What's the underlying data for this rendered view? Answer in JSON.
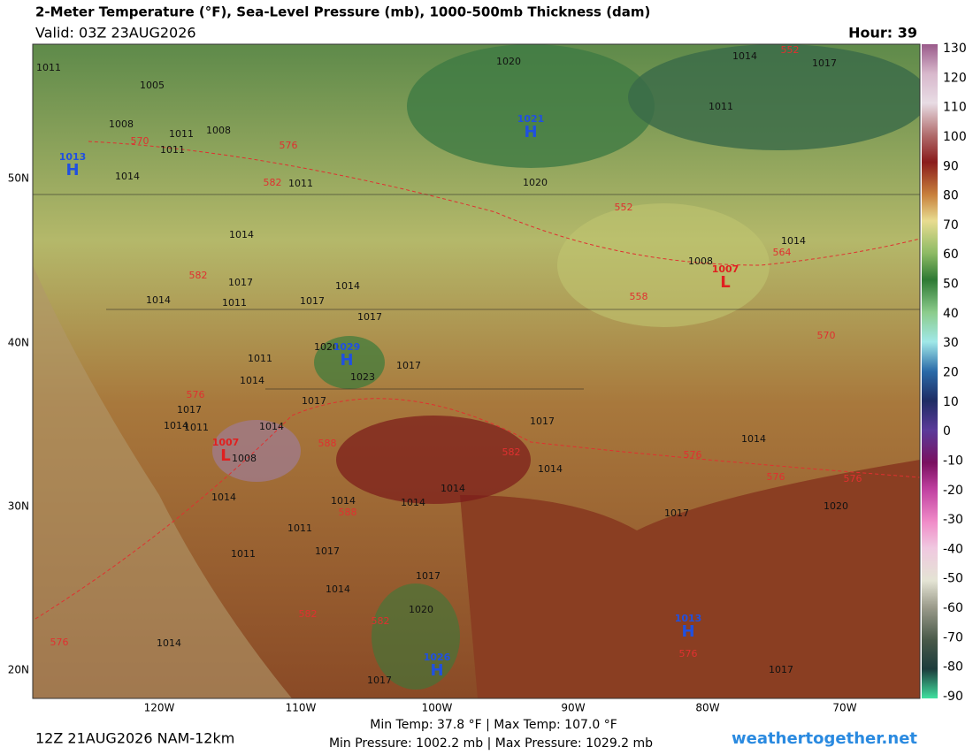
{
  "header": {
    "title": "2-Meter Temperature (°F), Sea-Level Pressure (mb), 1000-500mb Thickness (dam)",
    "valid": "Valid: 03Z 23AUG2026",
    "hour": "Hour: 39"
  },
  "colorbar": {
    "ticks": [
      130,
      120,
      110,
      100,
      90,
      80,
      70,
      60,
      50,
      40,
      30,
      20,
      10,
      0,
      -10,
      -20,
      -30,
      -40,
      -50,
      -60,
      -70,
      -80,
      -90
    ]
  },
  "lon_labels": [
    "120W",
    "110W",
    "100W",
    "90W",
    "80W",
    "70W"
  ],
  "lat_labels": [
    "50N",
    "40N",
    "30N",
    "20N"
  ],
  "pressure_labels": [
    1011,
    1005,
    1008,
    1011,
    1008,
    1011,
    1014,
    1011,
    1020,
    1014,
    1017,
    1011,
    1020,
    1014,
    1014,
    1017,
    1014,
    1011,
    1014,
    1017,
    1017,
    1008,
    1020,
    1011,
    1017,
    1014,
    1023,
    1017,
    1017,
    1011,
    1014,
    1014,
    1017,
    1014,
    1008,
    1014,
    1014,
    1014,
    1014,
    1014,
    1017,
    1020,
    1011,
    1011,
    1017,
    1017,
    1014,
    1020,
    1014,
    1017,
    1017
  ],
  "thickness_labels": [
    552,
    570,
    576,
    582,
    552,
    564,
    558,
    570,
    582,
    576,
    588,
    582,
    576,
    576,
    576,
    588,
    582,
    582,
    576,
    576
  ],
  "centers": [
    {
      "letter": "H",
      "pressure": 1021
    },
    {
      "letter": "H",
      "pressure": 1013
    },
    {
      "letter": "H",
      "pressure": 1029
    },
    {
      "letter": "L",
      "pressure": 1007
    },
    {
      "letter": "L",
      "pressure": 1007
    },
    {
      "letter": "H",
      "pressure": 1013
    },
    {
      "letter": "H",
      "pressure": 1026
    }
  ],
  "footer": {
    "run": "12Z 21AUG2026 NAM-12km",
    "temps": "Min Temp:  37.8 °F | Max Temp: 107.0 °F",
    "pressures": "Min Pressure: 1002.2 mb | Max Pressure: 1029.2 mb",
    "credit": "weathertogether.net"
  }
}
